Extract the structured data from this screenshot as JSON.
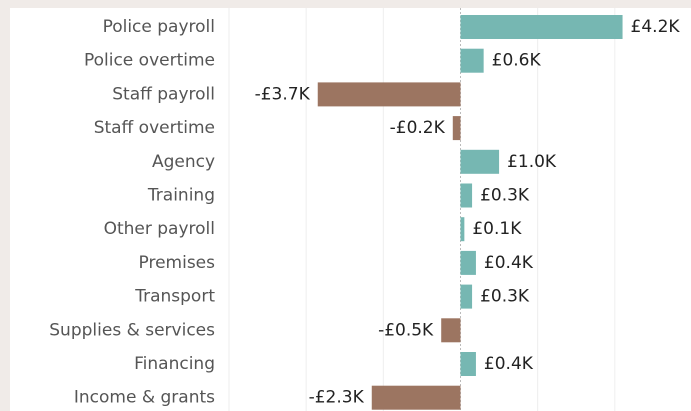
{
  "chart_data": {
    "type": "bar",
    "orientation": "horizontal",
    "categories": [
      "Police payroll",
      "Police overtime",
      "Staff payroll",
      "Staff overtime",
      "Agency",
      "Training",
      "Other payroll",
      "Premises",
      "Transport",
      "Supplies & services",
      "Financing",
      "Income & grants"
    ],
    "values": [
      4.2,
      0.6,
      -3.7,
      -0.2,
      1.0,
      0.3,
      0.1,
      0.4,
      0.3,
      -0.5,
      0.4,
      -2.3
    ],
    "value_labels": [
      "£4.2K",
      "£0.6K",
      "-£3.7K",
      "-£0.2K",
      "£1.0K",
      "£0.3K",
      "£0.1K",
      "£0.4K",
      "£0.3K",
      "-£0.5K",
      "£0.4K",
      "-£2.3K"
    ],
    "color_positive": "#76b7b2",
    "color_negative": "#9c7561",
    "xlim": [
      -6,
      6
    ],
    "xticks": [
      -6,
      -4,
      -2,
      0,
      2,
      4
    ],
    "grid": true
  }
}
